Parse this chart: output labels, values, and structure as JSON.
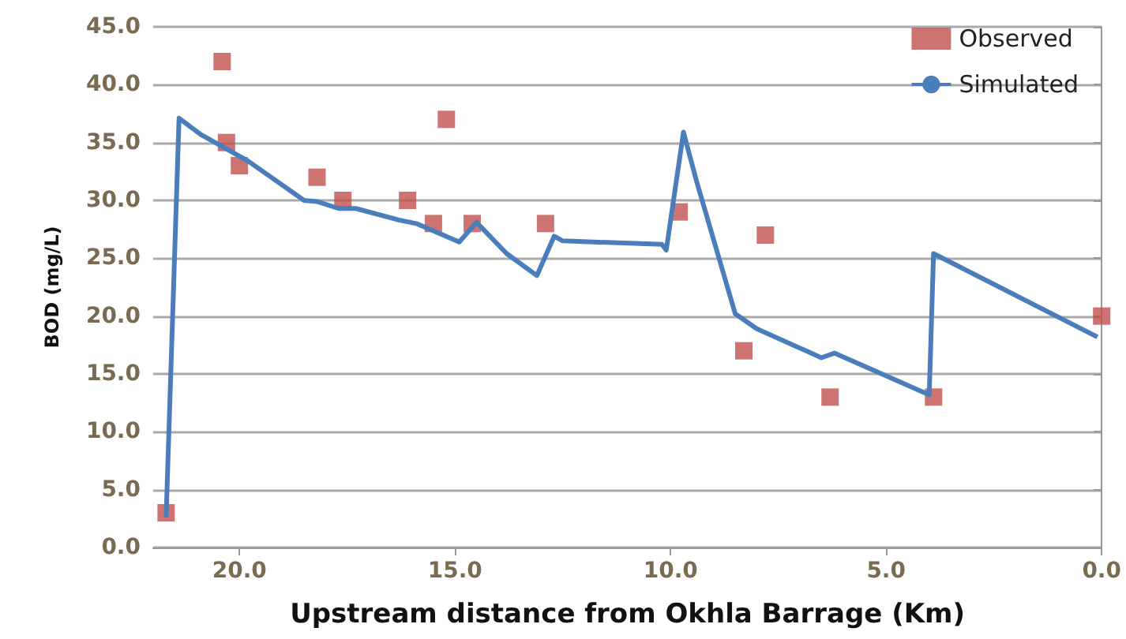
{
  "chart_data": {
    "type": "scatter",
    "xlabel": "Upstream distance from Okhla Barrage (Km)",
    "ylabel": "BOD (mg/L)",
    "xlim": [
      22,
      0
    ],
    "xticks": [
      {
        "value": 20,
        "label": "20.0"
      },
      {
        "value": 15,
        "label": "15.0"
      },
      {
        "value": 10,
        "label": "10.0"
      },
      {
        "value": 5,
        "label": "5.0"
      },
      {
        "value": 0,
        "label": "0.0"
      }
    ],
    "ylim": [
      0,
      45
    ],
    "yticks": [
      {
        "value": 0,
        "label": "0.0"
      },
      {
        "value": 5,
        "label": "5.0"
      },
      {
        "value": 10,
        "label": "10.0"
      },
      {
        "value": 15,
        "label": "15.0"
      },
      {
        "value": 20,
        "label": "20.0"
      },
      {
        "value": 25,
        "label": "25.0"
      },
      {
        "value": 30,
        "label": "30.0"
      },
      {
        "value": 35,
        "label": "35.0"
      },
      {
        "value": 40,
        "label": "40.0"
      },
      {
        "value": 45,
        "label": "45.0"
      }
    ],
    "grid": "y",
    "legend": "top right",
    "series": [
      {
        "name": "Observed",
        "marker": "square",
        "color": "#c0504d",
        "x": [
          21.7,
          20.4,
          20.3,
          20.0,
          18.2,
          17.6,
          16.1,
          15.5,
          15.2,
          14.6,
          12.9,
          9.8,
          8.3,
          7.8,
          6.3,
          3.9,
          0.0
        ],
        "values": [
          3,
          42,
          35,
          33,
          32,
          30,
          30,
          28,
          37,
          28,
          28,
          29,
          17,
          27,
          13,
          13,
          20
        ]
      },
      {
        "name": "Simulated",
        "type": "line",
        "marker": "none",
        "color": "#4a7ebb",
        "x": [
          21.7,
          21.4,
          20.9,
          19.8,
          18.5,
          18.2,
          17.7,
          17.3,
          16.3,
          15.9,
          14.9,
          14.5,
          13.8,
          13.1,
          12.7,
          12.5,
          10.2,
          10.1,
          9.7,
          9.4,
          8.5,
          8.0,
          6.5,
          6.2,
          4.0,
          3.9,
          0.1
        ],
        "values": [
          2.6,
          37.1,
          35.7,
          33.4,
          30.0,
          29.9,
          29.3,
          29.3,
          28.3,
          28.0,
          26.4,
          28.1,
          25.4,
          23.5,
          26.9,
          26.5,
          26.2,
          25.7,
          35.9,
          31.7,
          20.2,
          18.9,
          16.4,
          16.8,
          13.2,
          25.4,
          18.2
        ]
      }
    ]
  }
}
